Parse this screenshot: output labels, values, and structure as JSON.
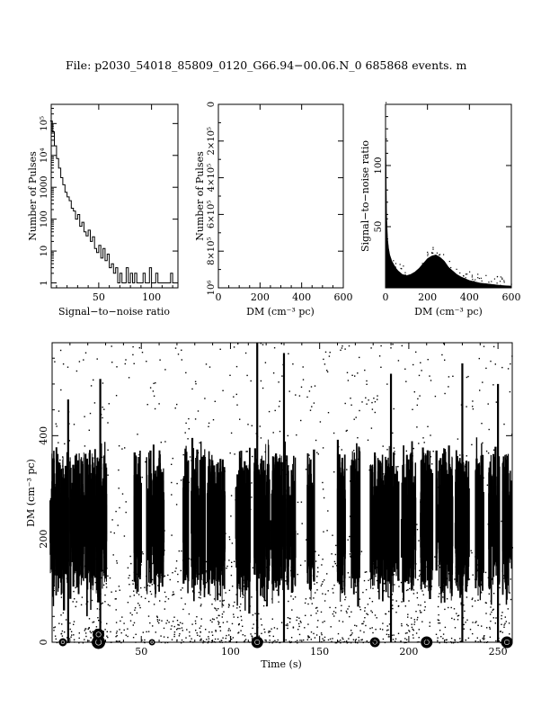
{
  "header": {
    "title": "File: p2030_54018_85809_0120_G66.94−00.06.N_0     685868 events. m"
  },
  "chart_data": [
    {
      "id": "snr-hist",
      "type": "line",
      "title": "",
      "xlabel": "Signal−to−noise ratio",
      "ylabel": "Number of Pulses",
      "xlim": [
        5,
        125
      ],
      "ylim": [
        0.7,
        400000
      ],
      "y_scale": "log",
      "x_ticks": [
        50,
        100
      ],
      "y_ticks": [
        {
          "value": 1,
          "label": "1"
        },
        {
          "value": 10,
          "label": "10"
        },
        {
          "value": 100,
          "label": "100"
        },
        {
          "value": 1000,
          "label": "1000"
        },
        {
          "value": 10000,
          "label": "10⁴"
        },
        {
          "value": 100000,
          "label": "10⁵"
        }
      ],
      "series": [
        {
          "x": [
            5,
            7,
            9,
            11,
            13,
            15,
            17,
            19,
            21,
            23,
            25,
            27,
            29,
            31,
            33,
            35,
            37,
            39,
            41,
            43,
            45,
            47,
            49,
            51,
            53,
            55,
            57,
            59,
            61,
            63,
            65,
            67,
            69,
            71,
            73,
            75,
            77,
            79,
            81,
            83,
            85,
            87,
            89,
            91,
            93,
            95,
            97,
            99,
            101,
            103,
            105,
            107,
            109,
            111,
            113,
            115,
            117,
            119,
            121
          ],
          "y": [
            120000,
            55000,
            20000,
            8000,
            4000,
            2000,
            1200,
            700,
            500,
            380,
            220,
            180,
            100,
            140,
            60,
            80,
            40,
            30,
            45,
            20,
            28,
            12,
            9,
            15,
            6,
            12,
            5,
            8,
            3,
            4,
            2,
            3,
            1,
            2,
            1,
            1,
            3,
            1,
            2,
            1,
            2,
            1,
            1,
            1,
            2,
            1,
            1,
            3,
            1,
            1,
            2,
            1,
            1,
            1,
            1,
            1,
            1,
            2,
            1
          ]
        }
      ]
    },
    {
      "id": "dm-hist",
      "type": "bar",
      "title": "",
      "xlabel": "DM (cm⁻³ pc)",
      "ylabel": "Number of Pulses",
      "xlim": [
        0,
        600
      ],
      "ylim": [
        0,
        1000000
      ],
      "orientation_note": "y axis increases downward",
      "x_ticks": [
        0,
        200,
        400,
        600
      ],
      "y_ticks": [
        {
          "value": 0,
          "label": "0"
        },
        {
          "value": 200000,
          "label": "2×10⁵"
        },
        {
          "value": 400000,
          "label": "4×10⁵"
        },
        {
          "value": 600000,
          "label": "6×10⁵"
        },
        {
          "value": 800000,
          "label": "8×10⁵"
        },
        {
          "value": 1000000,
          "label": "10⁶"
        }
      ],
      "series": []
    },
    {
      "id": "snr-vs-dm",
      "type": "area",
      "title": "",
      "xlabel": "DM (cm⁻³ pc)",
      "ylabel": "Signal−to−noise ratio",
      "xlim": [
        0,
        600
      ],
      "ylim": [
        0,
        150
      ],
      "x_ticks": [
        0,
        200,
        400,
        600
      ],
      "y_ticks": [
        50,
        100
      ],
      "series": [
        {
          "x": [
            0,
            5,
            10,
            15,
            20,
            30,
            40,
            50,
            60,
            80,
            100,
            120,
            140,
            160,
            180,
            200,
            220,
            240,
            260,
            280,
            300,
            320,
            340,
            360,
            400,
            450,
            500,
            550,
            600
          ],
          "y": [
            145,
            60,
            40,
            32,
            27,
            22,
            19,
            16,
            14,
            11,
            10,
            11,
            13,
            16,
            20,
            24,
            26,
            27,
            25,
            22,
            17,
            14,
            11,
            9,
            6,
            4,
            3,
            2,
            1.5
          ]
        }
      ]
    },
    {
      "id": "dm-vs-time",
      "type": "scatter",
      "title": "",
      "xlabel": "Time (s)",
      "ylabel": "DM (cm⁻³ pc)",
      "xlim": [
        0,
        258
      ],
      "ylim": [
        0,
        580
      ],
      "x_ticks": [
        50,
        100,
        150,
        200,
        250
      ],
      "y_ticks": [
        0,
        200,
        400
      ],
      "bursts": [
        {
          "t": 4,
          "w": 10
        },
        {
          "t": 12,
          "w": 4
        },
        {
          "t": 18,
          "w": 9
        },
        {
          "t": 25,
          "w": 6
        },
        {
          "t": 28,
          "w": 5
        },
        {
          "t": 48,
          "w": 4
        },
        {
          "t": 58,
          "w": 10
        },
        {
          "t": 75,
          "w": 3
        },
        {
          "t": 82,
          "w": 8
        },
        {
          "t": 92,
          "w": 10
        },
        {
          "t": 107,
          "w": 8
        },
        {
          "t": 118,
          "w": 9
        },
        {
          "t": 127,
          "w": 8
        },
        {
          "t": 134,
          "w": 5
        },
        {
          "t": 145,
          "w": 4
        },
        {
          "t": 162,
          "w": 5
        },
        {
          "t": 170,
          "w": 5
        },
        {
          "t": 182,
          "w": 7
        },
        {
          "t": 190,
          "w": 9
        },
        {
          "t": 200,
          "w": 8
        },
        {
          "t": 210,
          "w": 7
        },
        {
          "t": 220,
          "w": 9
        },
        {
          "t": 230,
          "w": 8
        },
        {
          "t": 240,
          "w": 5
        },
        {
          "t": 248,
          "w": 6
        },
        {
          "t": 255,
          "w": 5
        }
      ],
      "large_markers": [
        {
          "t": 6,
          "dm": 0,
          "r": 4
        },
        {
          "t": 26,
          "dm": 0,
          "r": 7
        },
        {
          "t": 26,
          "dm": 15,
          "r": 6
        },
        {
          "t": 56,
          "dm": 0,
          "r": 3
        },
        {
          "t": 115,
          "dm": 0,
          "r": 6
        },
        {
          "t": 181,
          "dm": 0,
          "r": 5
        },
        {
          "t": 210,
          "dm": 0,
          "r": 6
        },
        {
          "t": 255,
          "dm": 0,
          "r": 6
        }
      ]
    }
  ]
}
